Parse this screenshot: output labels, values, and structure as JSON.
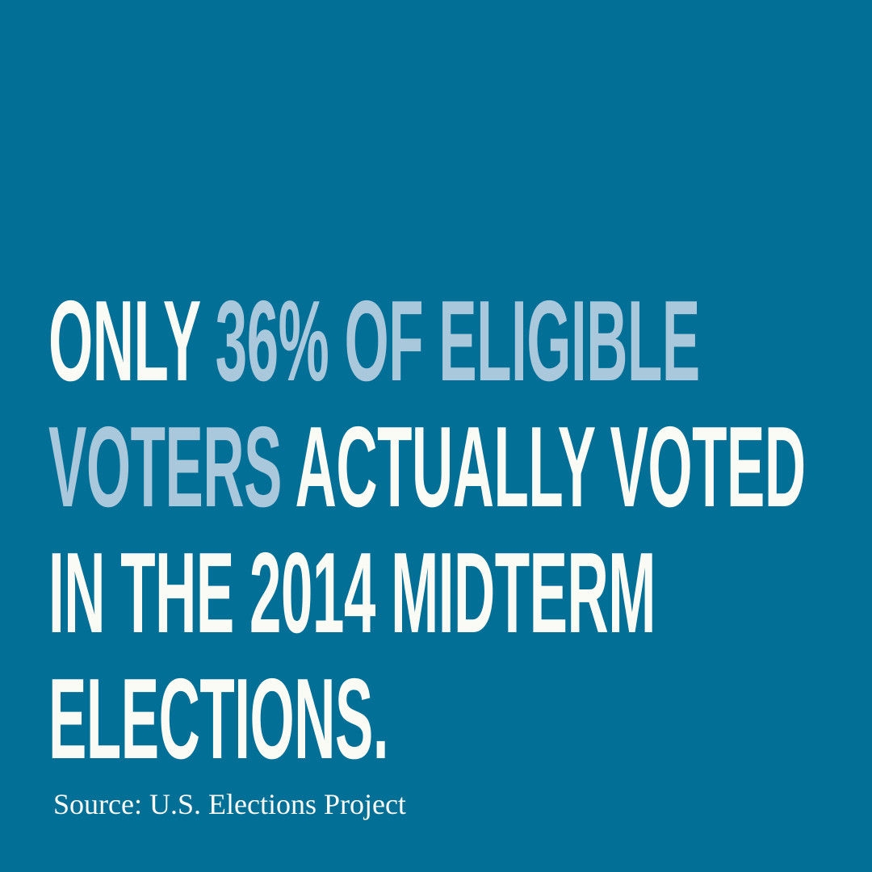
{
  "headline": {
    "lines": [
      [
        {
          "text": "ONLY ",
          "tone": "white"
        },
        {
          "text": "36% OF ELIGIBLE",
          "tone": "blue"
        }
      ],
      [
        {
          "text": "VOTERS",
          "tone": "blue"
        },
        {
          "text": " ACTUALLY VOTED",
          "tone": "white"
        }
      ],
      [
        {
          "text": "IN THE 2014 MIDTERM",
          "tone": "white"
        }
      ],
      [
        {
          "text": "ELECTIONS.",
          "tone": "white"
        }
      ]
    ]
  },
  "source": "Source: U.S. Elections Project",
  "colors": {
    "background": "#016f96",
    "white_text": "#fbfbf6",
    "highlight_text": "#a9c8dc"
  }
}
